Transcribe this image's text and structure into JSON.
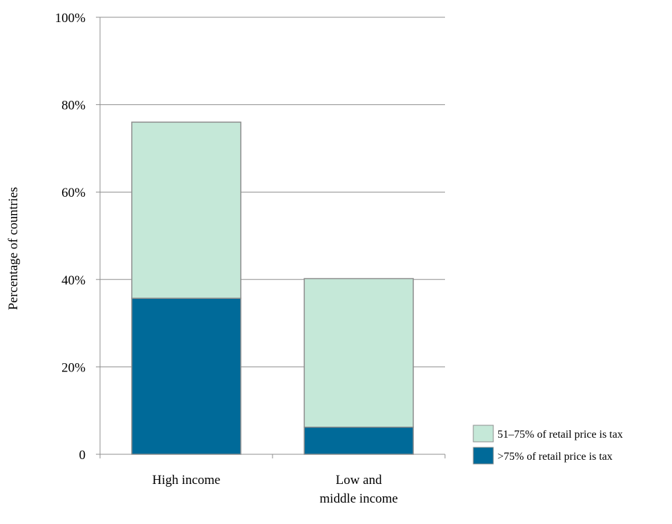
{
  "chart_data": {
    "type": "bar",
    "stacked": true,
    "categories": [
      "High income",
      "Low and middle income"
    ],
    "category_lines": [
      [
        "High income"
      ],
      [
        "Low and",
        "middle income"
      ]
    ],
    "series": [
      {
        "name": ">75% of retail price is tax",
        "values": [
          35.7,
          6.2
        ],
        "color": "#006a99"
      },
      {
        "name": "51–75% of retail price is tax",
        "values": [
          40.3,
          34.0
        ],
        "color": "#c5e8d8"
      }
    ],
    "legend_order": [
      1,
      0
    ],
    "ylabel": "Percentage of countries",
    "ylim": [
      0,
      100
    ],
    "yticks": [
      0,
      20,
      40,
      60,
      80,
      100
    ],
    "ytick_labels": [
      "0",
      "20%",
      "40%",
      "60%",
      "80%",
      "100%"
    ],
    "grid": true,
    "legend_position": "right"
  }
}
